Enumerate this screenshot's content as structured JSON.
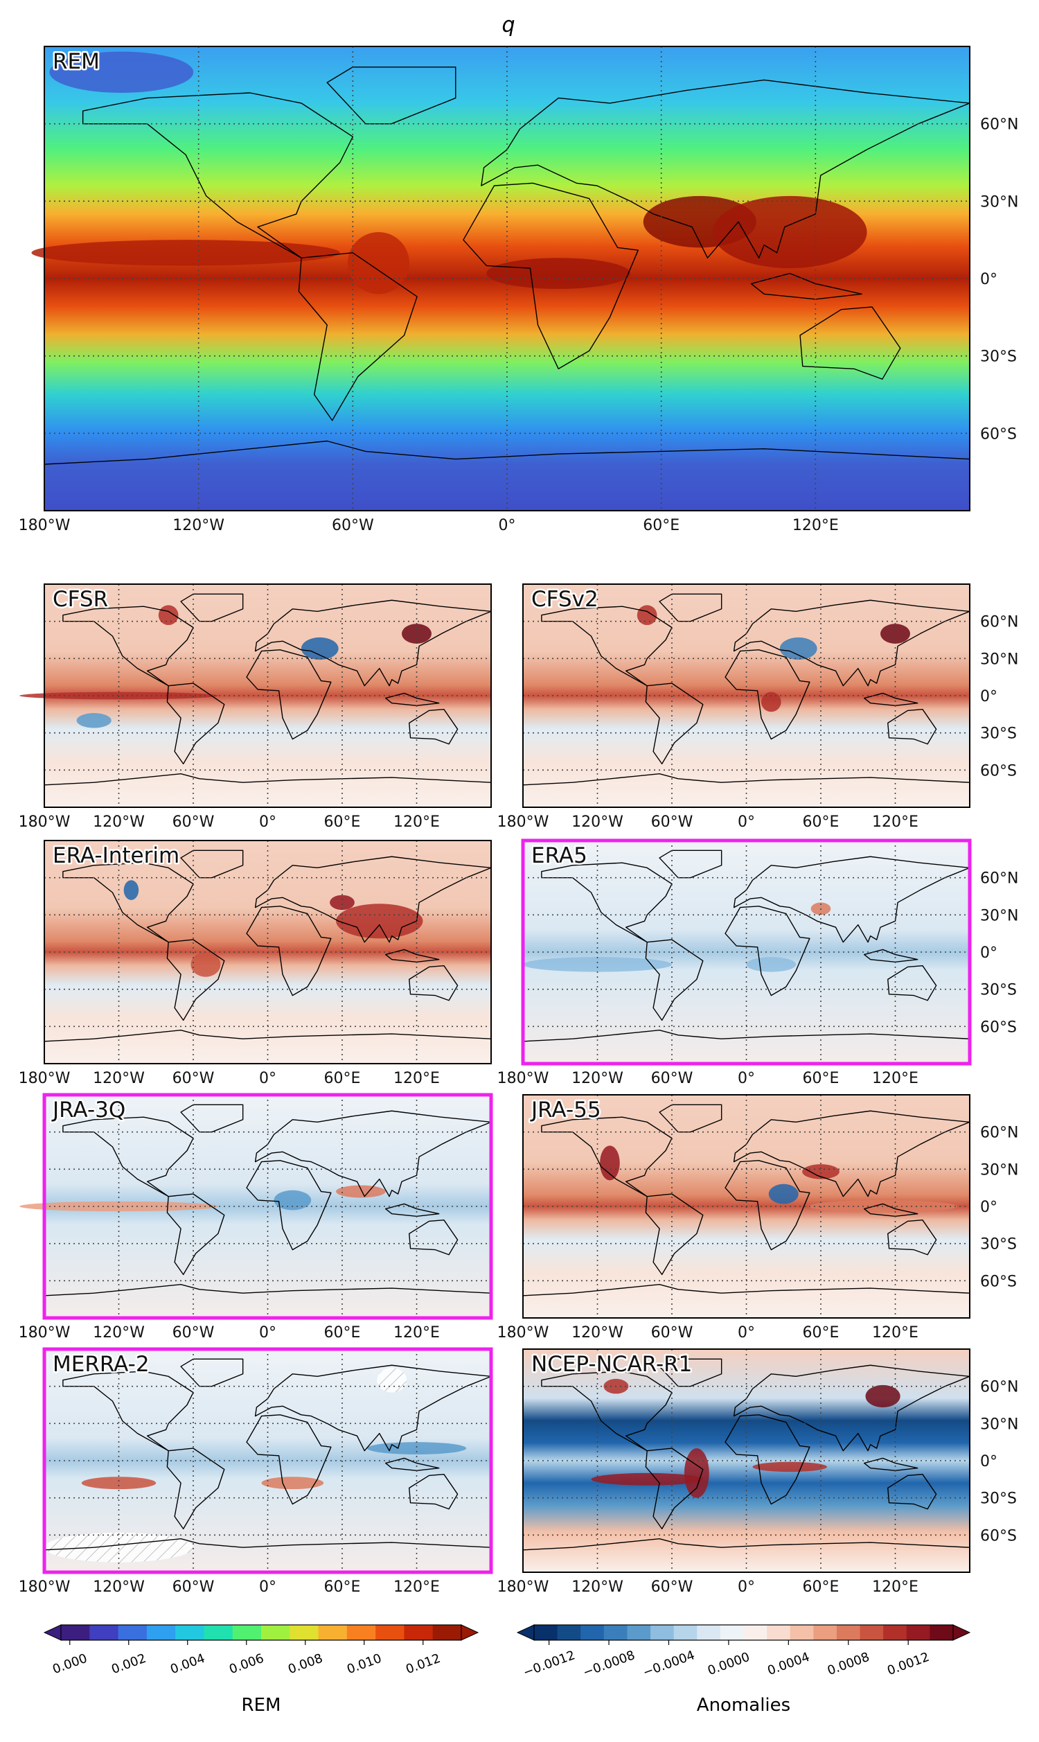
{
  "title": "q",
  "main": {
    "label": "REM"
  },
  "lon_ticks": [
    {
      "value": -180,
      "label": "180°W"
    },
    {
      "value": -120,
      "label": "120°W"
    },
    {
      "value": -60,
      "label": "60°W"
    },
    {
      "value": 0,
      "label": "0°"
    },
    {
      "value": 60,
      "label": "60°E"
    },
    {
      "value": 120,
      "label": "120°E"
    }
  ],
  "lat_ticks": [
    {
      "value": 60,
      "label": "60°N"
    },
    {
      "value": 30,
      "label": "30°N"
    },
    {
      "value": 0,
      "label": "0°"
    },
    {
      "value": -30,
      "label": "30°S"
    },
    {
      "value": -60,
      "label": "60°S"
    }
  ],
  "highlight_color": "#ee22ee",
  "panels": [
    {
      "label": "CFSR",
      "highlight": false
    },
    {
      "label": "CFSv2",
      "highlight": false
    },
    {
      "label": "ERA-Interim",
      "highlight": false
    },
    {
      "label": "ERA5",
      "highlight": true
    },
    {
      "label": "JRA-3Q",
      "highlight": true
    },
    {
      "label": "JRA-55",
      "highlight": false
    },
    {
      "label": "MERRA-2",
      "highlight": true
    },
    {
      "label": "NCEP-NCAR-R1",
      "highlight": false
    }
  ],
  "colorbars": [
    {
      "label": "REM",
      "lim": [
        -0.0003,
        0.0133
      ],
      "ticks": [
        {
          "value": 0,
          "label": "0.000"
        },
        0.002,
        0.004,
        0.006,
        0.008,
        {
          "value": 0.01,
          "label": "0.010"
        },
        0.012
      ],
      "colors": [
        "#3b1e80",
        "#3f3fbf",
        "#3a6fe0",
        "#2f9ff0",
        "#22c8e0",
        "#20e0b0",
        "#50f070",
        "#a0f040",
        "#e0e030",
        "#f8b030",
        "#f88020",
        "#e85010",
        "#c82808",
        "#9a1a04"
      ]
    },
    {
      "label": "Anomalies",
      "lim": [
        -0.0013,
        0.0015
      ],
      "ticks": [
        {
          "value": -0.0012,
          "label": "−0.0012"
        },
        {
          "value": -0.0008,
          "label": "−0.0008"
        },
        {
          "value": -0.0004,
          "label": "−0.0004"
        },
        {
          "value": 0,
          "label": "0.0000"
        },
        0.0004,
        0.0008,
        0.0012
      ],
      "colors": [
        "#08306b",
        "#134b87",
        "#2166ac",
        "#3a7fbb",
        "#5b9bcb",
        "#8ebde0",
        "#b6d5ea",
        "#d9e8f2",
        "#eef3f7",
        "#faf0eb",
        "#f8dcd0",
        "#f4c0a8",
        "#eb9e80",
        "#dc7a5e",
        "#c9543f",
        "#b2302a",
        "#961a22",
        "#6f0a18"
      ]
    }
  ]
}
